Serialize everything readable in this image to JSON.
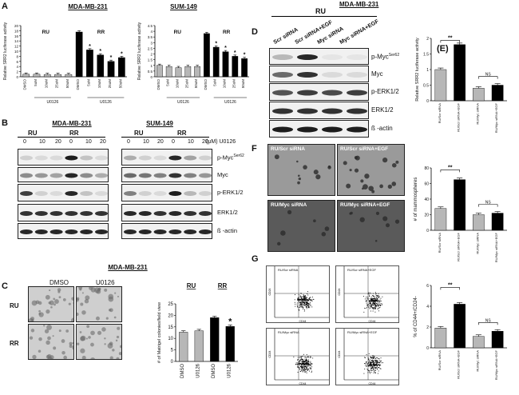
{
  "panels": {
    "A": {
      "label": "A",
      "left_title": "MDA-MB-231",
      "right_title": "SUM-149",
      "ylabel": "Relative SRR2 luciferase activity",
      "group_labels": [
        "RU",
        "RR"
      ],
      "treatment_label": "U0126"
    },
    "B": {
      "label": "B",
      "left_title": "MDA-MB-231",
      "right_title": "SUM-149",
      "groups": [
        "RU",
        "RR"
      ],
      "doses": [
        "0",
        "10",
        "20"
      ],
      "dose_unit": "(μM) U0126",
      "proteins": [
        "p-Myc",
        "Myc",
        "p-ERK1/2",
        "ERK1/2",
        "ß -actin"
      ],
      "pmyc_sup": "Ser62"
    },
    "C": {
      "label": "C",
      "title": "MDA-MB-231",
      "col_labels": [
        "DMSO",
        "U0126"
      ],
      "row_labels": [
        "RU",
        "RR"
      ],
      "ylabel": "# of Matrigel colonies/field view",
      "group_labels": [
        "RU",
        "RR"
      ],
      "star": "*"
    },
    "D": {
      "label": "D",
      "group": "RU",
      "cell_line": "MDA-MB-231",
      "lanes": [
        "Scr siRNA",
        "Scr siRNA+EGF",
        "Myc siRNA",
        "Myc siRNA+EGF"
      ],
      "proteins": [
        "p-Myc",
        "Myc",
        "p-ERK1/2",
        "ERK1/2",
        "ß -actin"
      ],
      "pmyc_sup": "Ser62"
    },
    "E": {
      "label": "(E)",
      "ylabel": "Relative SRR2 luciferase activity",
      "sig": "**",
      "ns": "NS"
    },
    "F": {
      "label": "F",
      "images": [
        "RU/Scr siRNA",
        "RU/Scr siRNA+EGF",
        "RU/Myc siRNA",
        "RU/Myc siRNA+EGF"
      ],
      "ylabel": "# of mammospheres",
      "sig": "**",
      "ns": "NS"
    },
    "G": {
      "label": "G",
      "plots": [
        "RU/Scr siRNA",
        "RU/Scr siRNA+EGF",
        "RU/Myc siRNA",
        "RU/Myc siRNA+EGF"
      ],
      "axis_x": "CD44",
      "axis_y": "CD24",
      "ylabel": "% of CD44+/CD24-",
      "sig": "**",
      "ns": "NS"
    }
  },
  "chart_data": [
    {
      "type": "bar",
      "panel": "A-left",
      "title": "MDA-MB-231",
      "ylabel": "Relative SRR2 luciferase activity",
      "categories": [
        "DMSO",
        "5uM",
        "10uM",
        "25uM",
        "50uM",
        "DMSO",
        "5uM",
        "10uM",
        "25uM",
        "50uM"
      ],
      "values": [
        1.0,
        1.0,
        0.9,
        0.9,
        0.9,
        17.5,
        10.5,
        8.5,
        6.0,
        7.5
      ],
      "ylim": [
        0,
        20
      ],
      "yticks": [
        "0",
        "2",
        "4",
        "6",
        "8",
        "10",
        "12",
        "14",
        "16",
        "18",
        "20"
      ],
      "colors": [
        "#b7b7b7",
        "#b7b7b7",
        "#b7b7b7",
        "#b7b7b7",
        "#b7b7b7",
        "#000000",
        "#000000",
        "#000000",
        "#000000",
        "#000000"
      ],
      "stars": [
        false,
        false,
        false,
        false,
        false,
        false,
        true,
        true,
        true,
        true
      ],
      "group_labels": [
        "RU",
        "RR"
      ],
      "treatment_label": "U0126"
    },
    {
      "type": "bar",
      "panel": "A-right",
      "title": "SUM-149",
      "ylabel": "Relative SRR2 luciferase activity",
      "categories": [
        "DMSO",
        "5uM",
        "10uM",
        "25uM",
        "50uM",
        "DMSO",
        "5uM",
        "10uM",
        "25uM",
        "50uM"
      ],
      "values": [
        1.0,
        0.9,
        0.8,
        0.9,
        0.9,
        3.8,
        2.6,
        2.2,
        1.8,
        1.6
      ],
      "ylim": [
        0,
        4.5
      ],
      "yticks": [
        "0",
        "0.5",
        "1",
        "1.5",
        "2",
        "2.5",
        "3",
        "3.5",
        "4",
        "4.5"
      ],
      "colors": [
        "#b7b7b7",
        "#b7b7b7",
        "#b7b7b7",
        "#b7b7b7",
        "#b7b7b7",
        "#000000",
        "#000000",
        "#000000",
        "#000000",
        "#000000"
      ],
      "stars": [
        false,
        false,
        false,
        false,
        false,
        false,
        true,
        true,
        true,
        true
      ],
      "group_labels": [
        "RU",
        "RR"
      ],
      "treatment_label": "U0126"
    },
    {
      "type": "bar",
      "panel": "C",
      "ylabel": "# of Matrigel colonies/field view",
      "categories": [
        "DMSO",
        "U0126",
        "DMSO",
        "U0126"
      ],
      "values": [
        12.7,
        13.3,
        19.0,
        15.2
      ],
      "ylim": [
        0,
        25
      ],
      "yticks": [
        "0",
        "5",
        "10",
        "15",
        "20",
        "25"
      ],
      "colors": [
        "#b7b7b7",
        "#b7b7b7",
        "#000000",
        "#000000"
      ],
      "stars": [
        false,
        false,
        false,
        true
      ]
    },
    {
      "type": "bar",
      "panel": "E",
      "ylabel": "Relative SRR2 luciferase activity",
      "categories": [
        "RU/Scr siRNA",
        "RU/Scr siRNA+EGF",
        "RU/Myc siRNA",
        "RU/Myc siRNA+EGF"
      ],
      "values": [
        1.0,
        1.8,
        0.4,
        0.5
      ],
      "ylim": [
        0,
        2
      ],
      "yticks": [
        "0",
        "0.5",
        "1",
        "1.5",
        "2"
      ],
      "colors": [
        "#b7b7b7",
        "#000000",
        "#b7b7b7",
        "#000000"
      ]
    },
    {
      "type": "bar",
      "panel": "F",
      "ylabel": "# of mammospheres",
      "categories": [
        "RU/Scr siRNA",
        "RU/Scr siRNA+EGF",
        "RU/Myc siRNA",
        "RU/Myc siRNA+EGF"
      ],
      "values": [
        28,
        65,
        20,
        22
      ],
      "ylim": [
        0,
        80
      ],
      "yticks": [
        "0",
        "20",
        "40",
        "60",
        "80"
      ],
      "colors": [
        "#b7b7b7",
        "#000000",
        "#b7b7b7",
        "#000000"
      ]
    },
    {
      "type": "bar",
      "panel": "G",
      "ylabel": "% of CD44+/CD24-",
      "categories": [
        "RU/Scr siRNA",
        "RU/Scr siRNA+EGF",
        "RU/Myc siRNA",
        "RU/Myc siRNA+EGF"
      ],
      "values": [
        1.9,
        4.2,
        1.1,
        1.6
      ],
      "ylim": [
        0,
        6
      ],
      "yticks": [
        "0",
        "2",
        "4",
        "6"
      ],
      "colors": [
        "#b7b7b7",
        "#000000",
        "#b7b7b7",
        "#000000"
      ]
    }
  ]
}
